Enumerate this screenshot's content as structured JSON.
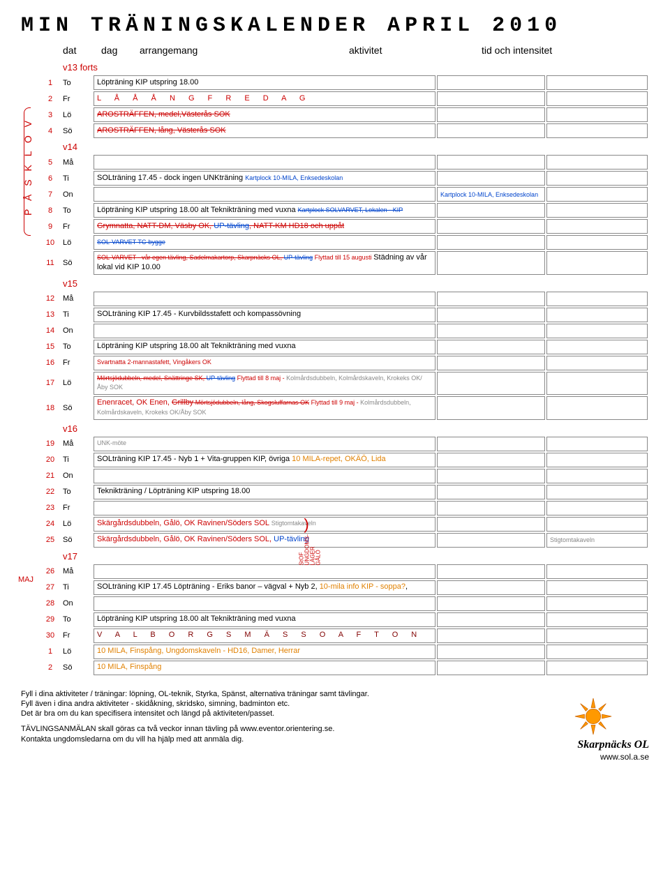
{
  "title": "MIN TRÄNINGSKALENDER APRIL 2010",
  "headers": {
    "dat": "dat",
    "dag": "dag",
    "arr": "arrangemang",
    "akt": "aktivitet",
    "tid": "tid och intensitet"
  },
  "sideLabel": "P Å S K L O V",
  "majLabel": "MAJ",
  "weeks": [
    {
      "label": "v13 forts",
      "rows": [
        {
          "n": "1",
          "d": "To",
          "arr": [
            {
              "t": "Löpträning KIP utspring 18.00"
            }
          ]
        },
        {
          "n": "2",
          "d": "Fr",
          "arr": [
            {
              "t": "L  Å  Å  Å  N  G  F  R  E  D  A  G",
              "cls": "sp"
            }
          ]
        },
        {
          "n": "3",
          "d": "Lö",
          "arr": [
            {
              "t": "AROSTRÄFFEN, medel,Västerås SOK",
              "cls": "red",
              "strike": true
            }
          ]
        },
        {
          "n": "4",
          "d": "Sö",
          "arr": [
            {
              "t": "AROSTRÄFFEN, lång, Västerås SOK",
              "cls": "red",
              "strike": true
            }
          ]
        }
      ]
    },
    {
      "label": "v14",
      "rows": [
        {
          "n": "5",
          "d": "Må",
          "arr": []
        },
        {
          "n": "6",
          "d": "Ti",
          "arr": [
            {
              "t": "SOLträning 17.45 - dock ingen UNKträning "
            },
            {
              "t": "Kartplock 10-MILA, Enksedeskolan",
              "cls": "blue tiny"
            }
          ]
        },
        {
          "n": "7",
          "d": "On",
          "arr": [],
          "akt": [
            {
              "t": "Kartplock 10-MILA, Enksedeskolan",
              "cls": "blue tiny"
            }
          ]
        },
        {
          "n": "8",
          "d": "To",
          "arr": [
            {
              "t": "Löpträning KIP utspring 18.00 alt Teknikträning med vuxna "
            },
            {
              "t": "Kartplock SOLVARVET, Lokalen - KIP",
              "cls": "blue tiny",
              "strike": true
            }
          ]
        },
        {
          "n": "9",
          "d": "Fr",
          "arr": [
            {
              "t": "Grymnatta, NATT-DM, Väsby OK, ",
              "cls": "red",
              "strike": true
            },
            {
              "t": "UP-tävling",
              "cls": "blue",
              "strike": true
            },
            {
              "t": ", NATT-KM HD18 och uppåt",
              "cls": "red",
              "strike": true
            }
          ]
        },
        {
          "n": "10",
          "d": "Lö",
          "arr": [
            {
              "t": "SOL-VARVET TC-bygge",
              "cls": "blue tiny",
              "strike": true
            }
          ]
        },
        {
          "n": "11",
          "d": "Sö",
          "arr": [
            {
              "t": "SOL-VARVET - vår egen tävling, Sadelmakartorp, Skarpnäcks OL, ",
              "cls": "red tiny",
              "strike": true
            },
            {
              "t": "UP-tävling",
              "cls": "blue tiny",
              "strike": true
            },
            {
              "t": " Flyttad till 15 augusti ",
              "cls": "red tiny"
            },
            {
              "t": " Städning av vår lokal vid KIP 10.00"
            }
          ]
        }
      ]
    },
    {
      "label": "v15",
      "rows": [
        {
          "n": "12",
          "d": "Må",
          "arr": []
        },
        {
          "n": "13",
          "d": "Ti",
          "arr": [
            {
              "t": "SOLträning KIP 17.45 - Kurvbildsstafett och kompassövning"
            }
          ]
        },
        {
          "n": "14",
          "d": "On",
          "arr": []
        },
        {
          "n": "15",
          "d": "To",
          "arr": [
            {
              "t": "Löpträning KIP utspring 18.00 alt Teknikträning med vuxna"
            }
          ]
        },
        {
          "n": "16",
          "d": "Fr",
          "arr": [
            {
              "t": "Svartnatta 2-mannastafett, Vingåkers OK",
              "cls": "red tiny"
            }
          ]
        },
        {
          "n": "17",
          "d": "Lö",
          "arr": [
            {
              "t": "Mörtsjödubbeln, medel, Snättringe SK, ",
              "cls": "red tiny",
              "strike": true
            },
            {
              "t": "UP-tävling",
              "cls": "blue tiny",
              "strike": true
            },
            {
              "t": " Flyttad till 8 maj - ",
              "cls": "red tiny"
            },
            {
              "t": "Kolmårdsdubbeln, Kolmårdskaveln, Krokeks OK/Åby SOK",
              "cls": "gray tiny"
            }
          ]
        },
        {
          "n": "18",
          "d": "Sö",
          "arr": [
            {
              "t": "Enenracet, OK Enen, ",
              "cls": "red"
            },
            {
              "t": "Grillby",
              "cls": "red",
              "strike": true
            },
            {
              "t": " Mörtsjödubbeln, lång, Skogsluffarnas OK",
              "cls": "red tiny",
              "strike": true
            },
            {
              "t": " Flyttad till 9 maj - ",
              "cls": "red tiny"
            },
            {
              "t": "Kolmårdsdubbeln, Kolmårdskaveln, Krokeks OK/Åby SOK",
              "cls": "gray tiny"
            }
          ]
        }
      ]
    },
    {
      "label": "v16",
      "rows": [
        {
          "n": "19",
          "d": "Må",
          "arr": [
            {
              "t": "UNK-möte",
              "cls": "gray tiny"
            }
          ]
        },
        {
          "n": "20",
          "d": "Ti",
          "arr": [
            {
              "t": "SOLträning KIP 17.45 - Nyb 1 + Vita-gruppen KIP, övriga "
            },
            {
              "t": "10 MILA-repet, OKÄÖ, Lida",
              "cls": "orange"
            }
          ]
        },
        {
          "n": "21",
          "d": "On",
          "arr": []
        },
        {
          "n": "22",
          "d": "To",
          "arr": [
            {
              "t": "Teknikträning / Löpträning KIP utspring 18.00"
            }
          ]
        },
        {
          "n": "23",
          "d": "Fr",
          "arr": []
        },
        {
          "n": "24",
          "d": "Lö",
          "arr": [
            {
              "t": "Skärgårdsdubbeln, Gålö, OK Ravinen/Söders SOL ",
              "cls": "red"
            },
            {
              "t": "Stigtomtakaveln",
              "cls": "gray tiny"
            }
          ],
          "vert": true
        },
        {
          "n": "25",
          "d": "Sö",
          "arr": [
            {
              "t": "Skärgårdsdubbeln, Gålö, OK Ravinen/Söders SOL, ",
              "cls": "red"
            },
            {
              "t": "UP-tävling",
              "cls": "blue"
            }
          ],
          "tid": [
            {
              "t": "Stigtomtakaveln",
              "cls": "gray tiny"
            }
          ]
        }
      ]
    },
    {
      "label": "v17",
      "rows": [
        {
          "n": "26",
          "d": "Må",
          "arr": []
        },
        {
          "n": "27",
          "d": "Ti",
          "arr": [
            {
              "t": "SOLträning KIP 17.45 Löpträning - Eriks banor – vägval + Nyb 2, "
            },
            {
              "t": "10-mila info KIP - soppa?",
              "cls": "orange"
            },
            {
              "t": ","
            }
          ]
        },
        {
          "n": "28",
          "d": "On",
          "arr": []
        },
        {
          "n": "29",
          "d": "To",
          "arr": [
            {
              "t": "Löpträning KIP utspring 18.00 alt Teknikträning med vuxna"
            }
          ]
        },
        {
          "n": "30",
          "d": "Fr",
          "arr": [
            {
              "t": "V  A  L  B  O  R  G  S  M  Ä  S  S  O  A  F  T  O  N",
              "cls": "sp-dark"
            }
          ]
        },
        {
          "n": "1",
          "d": "Lö",
          "arr": [
            {
              "t": "10 MILA, Finspång, Ungdomskaveln - HD16, Damer, Herrar",
              "cls": "orange"
            }
          ]
        },
        {
          "n": "2",
          "d": "Sö",
          "arr": [
            {
              "t": "10 MILA, Finspång",
              "cls": "orange"
            }
          ]
        }
      ]
    }
  ],
  "vertLabel1": "StOF",
  "vertLabel2": "UNGDOMS-",
  "vertLabel3": "LÄGER",
  "vertLabel4": "GÅLÖ",
  "footer": {
    "l1": "Fyll i dina aktiviteter / träningar: löpning, OL-teknik, Styrka, Spänst, alternativa träningar samt tävlingar.",
    "l2": "Fyll även i dina andra aktiviteter - skidåkning, skridsko, simning, badminton etc.",
    "l3": "Det är bra om du kan specifisera intensitet och längd på aktiviteten/passet.",
    "l4": "TÄVLINGSANMÄLAN skall göras ca två veckor innan tävling på www.eventor.orientering.se.",
    "l5": "Kontakta ungdomsledarna om du vill ha hjälp med att anmäla dig."
  },
  "brand": {
    "name": "Skarpnäcks OL",
    "url": "www.sol.a.se"
  },
  "colors": {
    "red": "#cc0000",
    "blue": "#0044cc",
    "orange": "#e08000",
    "gray": "#888888",
    "darkred": "#800000"
  }
}
